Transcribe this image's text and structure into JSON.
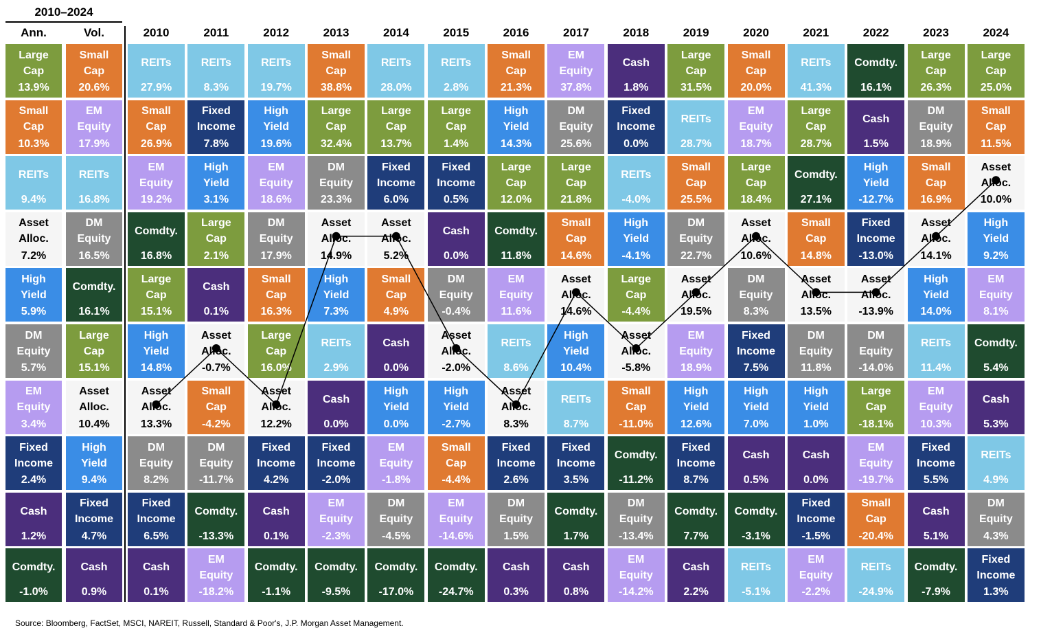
{
  "title": "2010–2024",
  "columns": [
    {
      "header": "Ann.",
      "cells": [
        {
          "name": "Large Cap",
          "value": "13.9%"
        },
        {
          "name": "Small Cap",
          "value": "10.3%"
        },
        {
          "name": "REITs",
          "value": "9.4%"
        },
        {
          "name": "Asset Alloc.",
          "value": "7.2%"
        },
        {
          "name": "High Yield",
          "value": "5.9%"
        },
        {
          "name": "DM Equity",
          "value": "5.7%"
        },
        {
          "name": "EM Equity",
          "value": "3.4%"
        },
        {
          "name": "Fixed Income",
          "value": "2.4%"
        },
        {
          "name": "Cash",
          "value": "1.2%"
        },
        {
          "name": "Comdty.",
          "value": "-1.0%"
        }
      ]
    },
    {
      "header": "Vol.",
      "cells": [
        {
          "name": "Small Cap",
          "value": "20.6%"
        },
        {
          "name": "EM Equity",
          "value": "17.9%"
        },
        {
          "name": "REITs",
          "value": "16.8%"
        },
        {
          "name": "DM Equity",
          "value": "16.5%"
        },
        {
          "name": "Comdty.",
          "value": "16.1%"
        },
        {
          "name": "Large Cap",
          "value": "15.1%"
        },
        {
          "name": "Asset Alloc.",
          "value": "10.4%"
        },
        {
          "name": "High Yield",
          "value": "9.4%"
        },
        {
          "name": "Fixed Income",
          "value": "4.7%"
        },
        {
          "name": "Cash",
          "value": "0.9%"
        }
      ]
    },
    {
      "header": "2010",
      "cells": [
        {
          "name": "REITs",
          "value": "27.9%"
        },
        {
          "name": "Small Cap",
          "value": "26.9%"
        },
        {
          "name": "EM Equity",
          "value": "19.2%"
        },
        {
          "name": "Comdty.",
          "value": "16.8%"
        },
        {
          "name": "Large Cap",
          "value": "15.1%"
        },
        {
          "name": "High Yield",
          "value": "14.8%"
        },
        {
          "name": "Asset Alloc.",
          "value": "13.3%"
        },
        {
          "name": "DM Equity",
          "value": "8.2%"
        },
        {
          "name": "Fixed Income",
          "value": "6.5%"
        },
        {
          "name": "Cash",
          "value": "0.1%"
        }
      ]
    },
    {
      "header": "2011",
      "cells": [
        {
          "name": "REITs",
          "value": "8.3%"
        },
        {
          "name": "Fixed Income",
          "value": "7.8%"
        },
        {
          "name": "High Yield",
          "value": "3.1%"
        },
        {
          "name": "Large Cap",
          "value": "2.1%"
        },
        {
          "name": "Cash",
          "value": "0.1%"
        },
        {
          "name": "Asset Alloc.",
          "value": "-0.7%"
        },
        {
          "name": "Small Cap",
          "value": "-4.2%"
        },
        {
          "name": "DM Equity",
          "value": "-11.7%"
        },
        {
          "name": "Comdty.",
          "value": "-13.3%"
        },
        {
          "name": "EM Equity",
          "value": "-18.2%"
        }
      ]
    },
    {
      "header": "2012",
      "cells": [
        {
          "name": "REITs",
          "value": "19.7%"
        },
        {
          "name": "High Yield",
          "value": "19.6%"
        },
        {
          "name": "EM Equity",
          "value": "18.6%"
        },
        {
          "name": "DM Equity",
          "value": "17.9%"
        },
        {
          "name": "Small Cap",
          "value": "16.3%"
        },
        {
          "name": "Large Cap",
          "value": "16.0%"
        },
        {
          "name": "Asset Alloc.",
          "value": "12.2%"
        },
        {
          "name": "Fixed Income",
          "value": "4.2%"
        },
        {
          "name": "Cash",
          "value": "0.1%"
        },
        {
          "name": "Comdty.",
          "value": "-1.1%"
        }
      ]
    },
    {
      "header": "2013",
      "cells": [
        {
          "name": "Small Cap",
          "value": "38.8%"
        },
        {
          "name": "Large Cap",
          "value": "32.4%"
        },
        {
          "name": "DM Equity",
          "value": "23.3%"
        },
        {
          "name": "Asset Alloc.",
          "value": "14.9%"
        },
        {
          "name": "High Yield",
          "value": "7.3%"
        },
        {
          "name": "REITs",
          "value": "2.9%"
        },
        {
          "name": "Cash",
          "value": "0.0%"
        },
        {
          "name": "Fixed Income",
          "value": "-2.0%"
        },
        {
          "name": "EM Equity",
          "value": "-2.3%"
        },
        {
          "name": "Comdty.",
          "value": "-9.5%"
        }
      ]
    },
    {
      "header": "2014",
      "cells": [
        {
          "name": "REITs",
          "value": "28.0%"
        },
        {
          "name": "Large Cap",
          "value": "13.7%"
        },
        {
          "name": "Fixed Income",
          "value": "6.0%"
        },
        {
          "name": "Asset Alloc.",
          "value": "5.2%"
        },
        {
          "name": "Small Cap",
          "value": "4.9%"
        },
        {
          "name": "Cash",
          "value": "0.0%"
        },
        {
          "name": "High Yield",
          "value": "0.0%"
        },
        {
          "name": "EM Equity",
          "value": "-1.8%"
        },
        {
          "name": "DM Equity",
          "value": "-4.5%"
        },
        {
          "name": "Comdty.",
          "value": "-17.0%"
        }
      ]
    },
    {
      "header": "2015",
      "cells": [
        {
          "name": "REITs",
          "value": "2.8%"
        },
        {
          "name": "Large Cap",
          "value": "1.4%"
        },
        {
          "name": "Fixed Income",
          "value": "0.5%"
        },
        {
          "name": "Cash",
          "value": "0.0%"
        },
        {
          "name": "DM Equity",
          "value": "-0.4%"
        },
        {
          "name": "Asset Alloc.",
          "value": "-2.0%"
        },
        {
          "name": "High Yield",
          "value": "-2.7%"
        },
        {
          "name": "Small Cap",
          "value": "-4.4%"
        },
        {
          "name": "EM Equity",
          "value": "-14.6%"
        },
        {
          "name": "Comdty.",
          "value": "-24.7%"
        }
      ]
    },
    {
      "header": "2016",
      "cells": [
        {
          "name": "Small Cap",
          "value": "21.3%"
        },
        {
          "name": "High Yield",
          "value": "14.3%"
        },
        {
          "name": "Large Cap",
          "value": "12.0%"
        },
        {
          "name": "Comdty.",
          "value": "11.8%"
        },
        {
          "name": "EM Equity",
          "value": "11.6%"
        },
        {
          "name": "REITs",
          "value": "8.6%"
        },
        {
          "name": "Asset Alloc.",
          "value": "8.3%"
        },
        {
          "name": "Fixed Income",
          "value": "2.6%"
        },
        {
          "name": "DM Equity",
          "value": "1.5%"
        },
        {
          "name": "Cash",
          "value": "0.3%"
        }
      ]
    },
    {
      "header": "2017",
      "cells": [
        {
          "name": "EM Equity",
          "value": "37.8%"
        },
        {
          "name": "DM Equity",
          "value": "25.6%"
        },
        {
          "name": "Large Cap",
          "value": "21.8%"
        },
        {
          "name": "Small Cap",
          "value": "14.6%"
        },
        {
          "name": "Asset Alloc.",
          "value": "14.6%"
        },
        {
          "name": "High Yield",
          "value": "10.4%"
        },
        {
          "name": "REITs",
          "value": "8.7%"
        },
        {
          "name": "Fixed Income",
          "value": "3.5%"
        },
        {
          "name": "Comdty.",
          "value": "1.7%"
        },
        {
          "name": "Cash",
          "value": "0.8%"
        }
      ]
    },
    {
      "header": "2018",
      "cells": [
        {
          "name": "Cash",
          "value": "1.8%"
        },
        {
          "name": "Fixed Income",
          "value": "0.0%"
        },
        {
          "name": "REITs",
          "value": "-4.0%"
        },
        {
          "name": "High Yield",
          "value": "-4.1%"
        },
        {
          "name": "Large Cap",
          "value": "-4.4%"
        },
        {
          "name": "Asset Alloc.",
          "value": "-5.8%"
        },
        {
          "name": "Small Cap",
          "value": "-11.0%"
        },
        {
          "name": "Comdty.",
          "value": "-11.2%"
        },
        {
          "name": "DM Equity",
          "value": "-13.4%"
        },
        {
          "name": "EM Equity",
          "value": "-14.2%"
        }
      ]
    },
    {
      "header": "2019",
      "cells": [
        {
          "name": "Large Cap",
          "value": "31.5%"
        },
        {
          "name": "REITs",
          "value": "28.7%"
        },
        {
          "name": "Small Cap",
          "value": "25.5%"
        },
        {
          "name": "DM Equity",
          "value": "22.7%"
        },
        {
          "name": "Asset Alloc.",
          "value": "19.5%"
        },
        {
          "name": "EM Equity",
          "value": "18.9%"
        },
        {
          "name": "High Yield",
          "value": "12.6%"
        },
        {
          "name": "Fixed Income",
          "value": "8.7%"
        },
        {
          "name": "Comdty.",
          "value": "7.7%"
        },
        {
          "name": "Cash",
          "value": "2.2%"
        }
      ]
    },
    {
      "header": "2020",
      "cells": [
        {
          "name": "Small Cap",
          "value": "20.0%"
        },
        {
          "name": "EM Equity",
          "value": "18.7%"
        },
        {
          "name": "Large Cap",
          "value": "18.4%"
        },
        {
          "name": "Asset Alloc.",
          "value": "10.6%"
        },
        {
          "name": "DM Equity",
          "value": "8.3%"
        },
        {
          "name": "Fixed Income",
          "value": "7.5%"
        },
        {
          "name": "High Yield",
          "value": "7.0%"
        },
        {
          "name": "Cash",
          "value": "0.5%"
        },
        {
          "name": "Comdty.",
          "value": "-3.1%"
        },
        {
          "name": "REITs",
          "value": "-5.1%"
        }
      ]
    },
    {
      "header": "2021",
      "cells": [
        {
          "name": "REITs",
          "value": "41.3%"
        },
        {
          "name": "Large Cap",
          "value": "28.7%"
        },
        {
          "name": "Comdty.",
          "value": "27.1%"
        },
        {
          "name": "Small Cap",
          "value": "14.8%"
        },
        {
          "name": "Asset Alloc.",
          "value": "13.5%"
        },
        {
          "name": "DM Equity",
          "value": "11.8%"
        },
        {
          "name": "High Yield",
          "value": "1.0%"
        },
        {
          "name": "Cash",
          "value": "0.0%"
        },
        {
          "name": "Fixed Income",
          "value": "-1.5%"
        },
        {
          "name": "EM Equity",
          "value": "-2.2%"
        }
      ]
    },
    {
      "header": "2022",
      "cells": [
        {
          "name": "Comdty.",
          "value": "16.1%"
        },
        {
          "name": "Cash",
          "value": "1.5%"
        },
        {
          "name": "High Yield",
          "value": "-12.7%"
        },
        {
          "name": "Fixed Income",
          "value": "-13.0%"
        },
        {
          "name": "Asset Alloc.",
          "value": "-13.9%"
        },
        {
          "name": "DM Equity",
          "value": "-14.0%"
        },
        {
          "name": "Large Cap",
          "value": "-18.1%"
        },
        {
          "name": "EM Equity",
          "value": "-19.7%"
        },
        {
          "name": "Small Cap",
          "value": "-20.4%"
        },
        {
          "name": "REITs",
          "value": "-24.9%"
        }
      ]
    },
    {
      "header": "2023",
      "cells": [
        {
          "name": "Large Cap",
          "value": "26.3%"
        },
        {
          "name": "DM Equity",
          "value": "18.9%"
        },
        {
          "name": "Small Cap",
          "value": "16.9%"
        },
        {
          "name": "Asset Alloc.",
          "value": "14.1%"
        },
        {
          "name": "High Yield",
          "value": "14.0%"
        },
        {
          "name": "REITs",
          "value": "11.4%"
        },
        {
          "name": "EM Equity",
          "value": "10.3%"
        },
        {
          "name": "Fixed Income",
          "value": "5.5%"
        },
        {
          "name": "Cash",
          "value": "5.1%"
        },
        {
          "name": "Comdty.",
          "value": "-7.9%"
        }
      ]
    },
    {
      "header": "2024",
      "cells": [
        {
          "name": "Large Cap",
          "value": "25.0%"
        },
        {
          "name": "Small Cap",
          "value": "11.5%"
        },
        {
          "name": "Asset Alloc.",
          "value": "10.0%"
        },
        {
          "name": "High Yield",
          "value": "9.2%"
        },
        {
          "name": "EM Equity",
          "value": "8.1%"
        },
        {
          "name": "Comdty.",
          "value": "5.4%"
        },
        {
          "name": "Cash",
          "value": "5.3%"
        },
        {
          "name": "REITs",
          "value": "4.9%"
        },
        {
          "name": "DM Equity",
          "value": "4.3%"
        },
        {
          "name": "Fixed Income",
          "value": "1.3%"
        }
      ]
    }
  ],
  "colors": {
    "Large Cap": {
      "bg": "#7d9c3e",
      "fg": "#ffffff"
    },
    "Small Cap": {
      "bg": "#e07a31",
      "fg": "#ffffff"
    },
    "REITs": {
      "bg": "#7fc8e6",
      "fg": "#ffffff"
    },
    "EM Equity": {
      "bg": "#b69cf0",
      "fg": "#ffffff"
    },
    "Cash": {
      "bg": "#4b2e7c",
      "fg": "#ffffff"
    },
    "Comdty.": {
      "bg": "#1f4b2f",
      "fg": "#ffffff"
    },
    "Fixed Income": {
      "bg": "#1f3d7a",
      "fg": "#ffffff"
    },
    "High Yield": {
      "bg": "#3a8de6",
      "fg": "#ffffff"
    },
    "DM Equity": {
      "bg": "#8b8b8b",
      "fg": "#ffffff"
    },
    "Asset Alloc.": {
      "bg": "#f5f5f5",
      "fg": "#000000",
      "line": true
    }
  },
  "source": "Source: Bloomberg, FactSet, MSCI, NAREIT, Russell, Standard & Poor's, J.P. Morgan Asset Management."
}
